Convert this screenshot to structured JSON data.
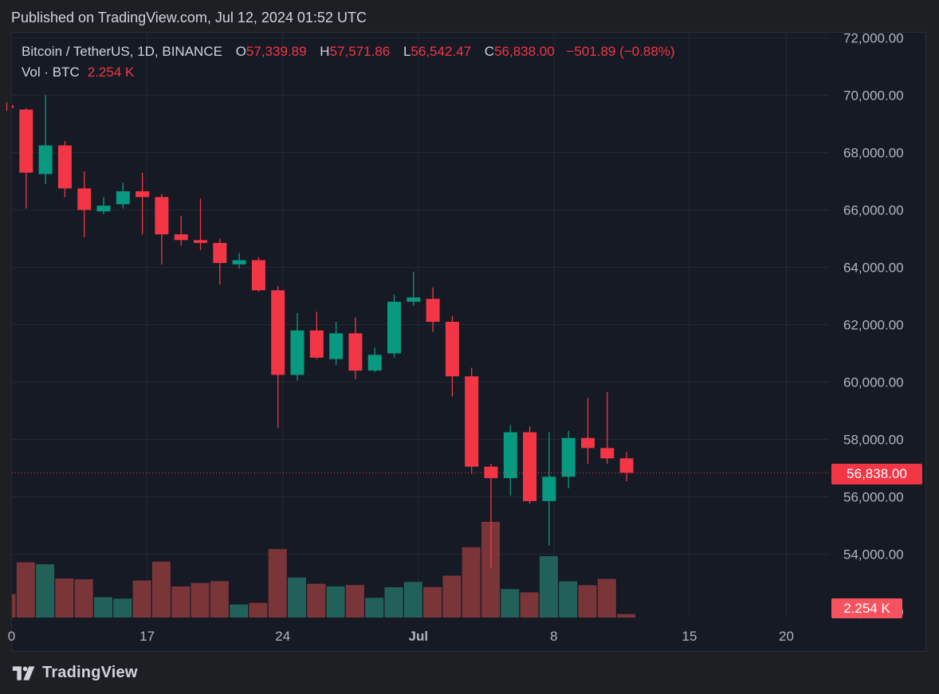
{
  "header": {
    "published": "Published on TradingView.com, Jul 12, 2024 01:52 UTC"
  },
  "legend": {
    "symbol": "Bitcoin / TetherUS, 1D, BINANCE",
    "open_label": "O",
    "open": "57,339.89",
    "high_label": "H",
    "high": "57,571.86",
    "low_label": "L",
    "low": "56,542.47",
    "close_label": "C",
    "close": "56,838.00",
    "change": "−501.89 (−0.88%)"
  },
  "volume_legend": {
    "label": "Vol · BTC",
    "value": "2.254 K"
  },
  "price_tag": "56,838.00",
  "volume_tag": "2.254 K",
  "footer": {
    "brand": "TradingView",
    "logo_icon": "tradingview-logo-icon"
  },
  "colors": {
    "up": "#089981",
    "down": "#f23645",
    "up_volume": "#22615a",
    "down_volume": "#7a3539",
    "grid": "#232734",
    "background": "#161a25"
  },
  "chart_data": {
    "type": "candlestick",
    "y_axis": {
      "range": [
        52000,
        72000
      ],
      "ticks": [
        "54,000.00",
        "56,000.00",
        "58,000.00",
        "60,000.00",
        "62,000.00",
        "64,000.00",
        "66,000.00",
        "68,000.00",
        "70,000.00",
        "72,000.00"
      ],
      "tick_values": [
        54000,
        56000,
        58000,
        60000,
        62000,
        64000,
        66000,
        68000,
        70000,
        72000
      ]
    },
    "x_axis": {
      "ticks": [
        {
          "label": "0",
          "index": 0
        },
        {
          "label": "17",
          "index": 7
        },
        {
          "label": "24",
          "index": 14
        },
        {
          "label": "Jul",
          "index": 21,
          "bold": true
        },
        {
          "label": "8",
          "index": 28
        },
        {
          "label": "15",
          "index": 35
        },
        {
          "label": "20",
          "index": 40
        }
      ]
    },
    "last_close": 56838,
    "candles": [
      {
        "o": 69650,
        "h": 69750,
        "l": 69450,
        "c": 69550,
        "v": 1.15
      },
      {
        "o": 69500,
        "h": 69550,
        "l": 66050,
        "c": 67300,
        "v": 2.72
      },
      {
        "o": 67250,
        "h": 70000,
        "l": 66900,
        "c": 68250,
        "v": 2.62
      },
      {
        "o": 68250,
        "h": 68400,
        "l": 66450,
        "c": 66750,
        "v": 1.92
      },
      {
        "o": 66750,
        "h": 67350,
        "l": 65050,
        "c": 66000,
        "v": 1.88
      },
      {
        "o": 65950,
        "h": 66450,
        "l": 65850,
        "c": 66150,
        "v": 1.0
      },
      {
        "o": 66200,
        "h": 66950,
        "l": 66050,
        "c": 66650,
        "v": 0.93
      },
      {
        "o": 66650,
        "h": 67300,
        "l": 65150,
        "c": 66450,
        "v": 1.82
      },
      {
        "o": 66450,
        "h": 66550,
        "l": 64100,
        "c": 65150,
        "v": 2.75
      },
      {
        "o": 65150,
        "h": 65800,
        "l": 64750,
        "c": 64950,
        "v": 1.53
      },
      {
        "o": 64950,
        "h": 66400,
        "l": 64600,
        "c": 64850,
        "v": 1.7
      },
      {
        "o": 64850,
        "h": 65000,
        "l": 63400,
        "c": 64150,
        "v": 1.79
      },
      {
        "o": 64100,
        "h": 64500,
        "l": 63950,
        "c": 64250,
        "v": 0.64
      },
      {
        "o": 64250,
        "h": 64350,
        "l": 63150,
        "c": 63200,
        "v": 0.72
      },
      {
        "o": 63200,
        "h": 63350,
        "l": 58400,
        "c": 60250,
        "v": 3.37
      },
      {
        "o": 60250,
        "h": 62400,
        "l": 60050,
        "c": 61800,
        "v": 1.97
      },
      {
        "o": 61800,
        "h": 62450,
        "l": 60800,
        "c": 60850,
        "v": 1.66
      },
      {
        "o": 60800,
        "h": 62100,
        "l": 60600,
        "c": 61700,
        "v": 1.53
      },
      {
        "o": 61700,
        "h": 62250,
        "l": 60100,
        "c": 60400,
        "v": 1.6
      },
      {
        "o": 60400,
        "h": 61200,
        "l": 60350,
        "c": 60950,
        "v": 0.97
      },
      {
        "o": 61000,
        "h": 63050,
        "l": 60850,
        "c": 62800,
        "v": 1.49
      },
      {
        "o": 62800,
        "h": 63850,
        "l": 62650,
        "c": 62950,
        "v": 1.75
      },
      {
        "o": 62900,
        "h": 63300,
        "l": 61750,
        "c": 62100,
        "v": 1.5
      },
      {
        "o": 62100,
        "h": 62300,
        "l": 59500,
        "c": 60200,
        "v": 2.06
      },
      {
        "o": 60200,
        "h": 60500,
        "l": 56800,
        "c": 57050,
        "v": 3.46
      },
      {
        "o": 57050,
        "h": 57150,
        "l": 53500,
        "c": 56650,
        "v": 4.71
      },
      {
        "o": 56650,
        "h": 58500,
        "l": 56050,
        "c": 58250,
        "v": 1.4
      },
      {
        "o": 58250,
        "h": 58450,
        "l": 55750,
        "c": 55850,
        "v": 1.24
      },
      {
        "o": 55850,
        "h": 58250,
        "l": 54300,
        "c": 56700,
        "v": 3.02
      },
      {
        "o": 56700,
        "h": 58300,
        "l": 56300,
        "c": 58050,
        "v": 1.78
      },
      {
        "o": 58050,
        "h": 59450,
        "l": 57150,
        "c": 57700,
        "v": 1.59
      },
      {
        "o": 57700,
        "h": 59650,
        "l": 57150,
        "c": 57340,
        "v": 1.9
      },
      {
        "o": 57340,
        "h": 57572,
        "l": 56542,
        "c": 56838,
        "v": 0.17
      }
    ]
  }
}
